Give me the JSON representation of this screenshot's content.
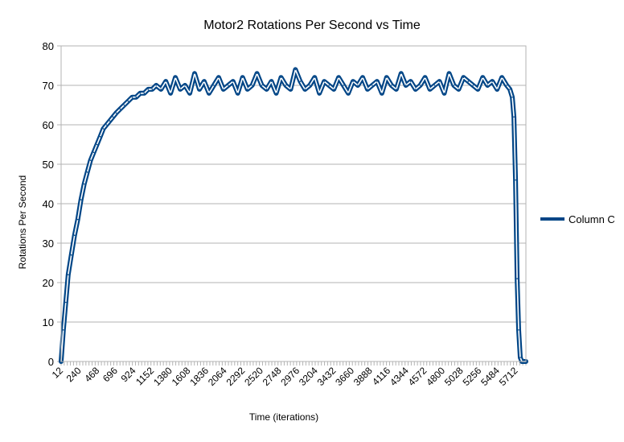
{
  "chart_data": {
    "type": "line",
    "title": "Motor2 Rotations Per Second vs Time",
    "xlabel": "Time (iterations)",
    "ylabel": "Rotations Per Second",
    "ylim": [
      0,
      80
    ],
    "y_ticks": [
      0,
      10,
      20,
      30,
      40,
      50,
      60,
      70,
      80
    ],
    "x_ticks": [
      "12",
      "240",
      "468",
      "696",
      "924",
      "1152",
      "1380",
      "1608",
      "1836",
      "2064",
      "2292",
      "2520",
      "2748",
      "2976",
      "3204",
      "3432",
      "3660",
      "3888",
      "4116",
      "4344",
      "4572",
      "4800",
      "5028",
      "5256",
      "5484",
      "5712"
    ],
    "x_range": [
      12,
      5820
    ],
    "grid": true,
    "legend": "right",
    "series": [
      {
        "name": "Column C",
        "color": "#004586",
        "x": [
          12,
          40,
          70,
          100,
          140,
          180,
          220,
          260,
          300,
          340,
          380,
          420,
          460,
          500,
          540,
          580,
          620,
          660,
          700,
          750,
          800,
          850,
          900,
          950,
          1000,
          1050,
          1100,
          1150,
          1200,
          1260,
          1320,
          1380,
          1440,
          1500,
          1560,
          1620,
          1680,
          1740,
          1800,
          1860,
          1920,
          1980,
          2040,
          2100,
          2160,
          2220,
          2280,
          2340,
          2400,
          2460,
          2520,
          2580,
          2640,
          2700,
          2760,
          2820,
          2880,
          2940,
          3000,
          3060,
          3120,
          3180,
          3240,
          3300,
          3360,
          3420,
          3480,
          3540,
          3600,
          3660,
          3720,
          3780,
          3840,
          3900,
          3960,
          4020,
          4080,
          4140,
          4200,
          4260,
          4320,
          4380,
          4440,
          4500,
          4560,
          4620,
          4680,
          4740,
          4800,
          4860,
          4920,
          4980,
          5040,
          5100,
          5160,
          5220,
          5280,
          5340,
          5400,
          5460,
          5520,
          5580,
          5620,
          5650,
          5670,
          5690,
          5710,
          5730,
          5750,
          5770,
          5790,
          5820
        ],
        "values": [
          0,
          8,
          15,
          22,
          27,
          32,
          36,
          41,
          45,
          48,
          51,
          53,
          55,
          57,
          59,
          60,
          61,
          62,
          63,
          64,
          65,
          66,
          67,
          67,
          68,
          68,
          69,
          69,
          70,
          69,
          71,
          68,
          72,
          69,
          70,
          68,
          73,
          69,
          71,
          68,
          70,
          72,
          69,
          70,
          71,
          68,
          72,
          69,
          70,
          73,
          70,
          69,
          71,
          68,
          72,
          70,
          69,
          74,
          71,
          69,
          70,
          72,
          68,
          71,
          70,
          69,
          72,
          70,
          68,
          71,
          70,
          72,
          69,
          70,
          71,
          68,
          72,
          70,
          69,
          73,
          70,
          71,
          69,
          70,
          72,
          69,
          70,
          71,
          68,
          73,
          70,
          69,
          72,
          71,
          70,
          69,
          72,
          70,
          71,
          69,
          72,
          70,
          69,
          67,
          62,
          46,
          21,
          8,
          1,
          0,
          0,
          0
        ]
      }
    ]
  }
}
